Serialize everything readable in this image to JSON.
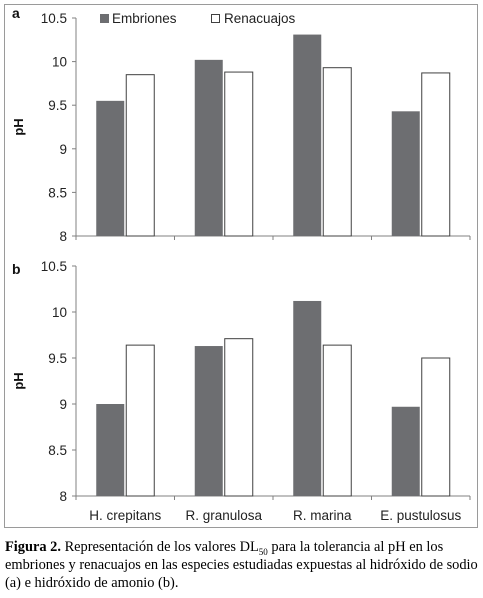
{
  "colors": {
    "embriones": "#6d6e71",
    "renacuajos": "#ffffff",
    "stroke": "#404040",
    "axis": "#808080",
    "frame": "#9a9a9a"
  },
  "legend": {
    "embriones": "Embriones",
    "renacuajos": "Renacuajos"
  },
  "caption": {
    "label": "Figura 2.",
    "text_before_sub": " Representación de los valores DL",
    "sub": "50",
    "text_after_sub": " para la tolerancia al pH en los embriones y renacuajos en las especies estudiadas expuestas al hidróxido de sodio (a) e hidróxido de amonio (b)."
  },
  "chart_data": [
    {
      "type": "bar",
      "panel_label": "a",
      "ylabel": "pH",
      "ylim": [
        8,
        10.5
      ],
      "yticks": [
        "8",
        "8.5",
        "9",
        "9.5",
        "10",
        "10.5"
      ],
      "grid": false,
      "legend_position": "top",
      "categories": [
        "H. crepitans",
        "R. granulosa",
        "R. marina",
        "E. pustulosus"
      ],
      "show_category_labels": false,
      "series": [
        {
          "name": "Embriones",
          "values": [
            9.55,
            10.02,
            10.31,
            9.43
          ]
        },
        {
          "name": "Renacuajos",
          "values": [
            9.85,
            9.88,
            9.93,
            9.87
          ]
        }
      ]
    },
    {
      "type": "bar",
      "panel_label": "b",
      "ylabel": "pH",
      "ylim": [
        8,
        10.5
      ],
      "yticks": [
        "8",
        "8.5",
        "9",
        "9.5",
        "10",
        "10.5"
      ],
      "grid": false,
      "categories": [
        "H. crepitans",
        "R. granulosa",
        "R. marina",
        "E. pustulosus"
      ],
      "show_category_labels": true,
      "series": [
        {
          "name": "Embriones",
          "values": [
            9.0,
            9.63,
            10.12,
            8.97
          ]
        },
        {
          "name": "Renacuajos",
          "values": [
            9.64,
            9.71,
            9.64,
            9.5
          ]
        }
      ]
    }
  ]
}
